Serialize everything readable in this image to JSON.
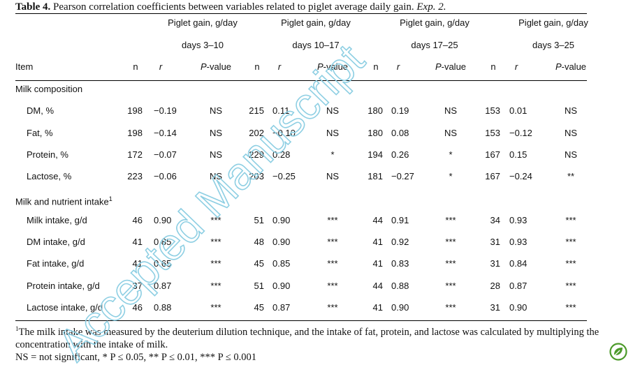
{
  "caption": {
    "label": "Table 4.",
    "text": " Pearson correlation coefficients between variables related to piglet average daily gain. ",
    "exp": "Exp. 2."
  },
  "header": {
    "groups": [
      {
        "title": "Piglet gain, g/day",
        "days": "days 3–10"
      },
      {
        "title": "Piglet gain, g/day",
        "days": "days 10–17"
      },
      {
        "title": "Piglet gain, g/day",
        "days": "days 17–25"
      },
      {
        "title": "Piglet gain, g/day",
        "days": "days 3–25"
      }
    ],
    "item": "Item",
    "n": "n",
    "r": "r",
    "p_italic": "P",
    "p_rest": "-value"
  },
  "sections": [
    {
      "title": "Milk composition",
      "sup": "",
      "rows": [
        {
          "label": "DM, %",
          "cells": [
            [
              "198",
              "−0.19",
              "NS"
            ],
            [
              "215",
              "0.11",
              "NS"
            ],
            [
              "180",
              "0.19",
              "NS"
            ],
            [
              "153",
              "0.01",
              "NS"
            ]
          ]
        },
        {
          "label": "Fat, %",
          "cells": [
            [
              "198",
              "−0.14",
              "NS"
            ],
            [
              "202",
              "−0.10",
              "NS"
            ],
            [
              "180",
              "0.08",
              "NS"
            ],
            [
              "153",
              "−0.12",
              "NS"
            ]
          ]
        },
        {
          "label": "Protein, %",
          "cells": [
            [
              "172",
              "−0.07",
              "NS"
            ],
            [
              "229",
              "0.28",
              "*"
            ],
            [
              "194",
              "0.26",
              "*"
            ],
            [
              "167",
              "0.15",
              "NS"
            ]
          ]
        },
        {
          "label": "Lactose, %",
          "cells": [
            [
              "223",
              "−0.06",
              "NS"
            ],
            [
              "203",
              "−0.25",
              "NS"
            ],
            [
              "181",
              "−0.27",
              "*"
            ],
            [
              "167",
              "−0.24",
              "**"
            ]
          ]
        }
      ]
    },
    {
      "title": "Milk and nutrient intake",
      "sup": "1",
      "rows": [
        {
          "label": "Milk intake, g/d",
          "cells": [
            [
              "46",
              "0.90",
              "***"
            ],
            [
              "51",
              "0.90",
              "***"
            ],
            [
              "44",
              "0.91",
              "***"
            ],
            [
              "34",
              "0.93",
              "***"
            ]
          ]
        },
        {
          "label": "DM intake, g/d",
          "cells": [
            [
              "41",
              "0.85",
              "***"
            ],
            [
              "48",
              "0.90",
              "***"
            ],
            [
              "41",
              "0.92",
              "***"
            ],
            [
              "31",
              "0.93",
              "***"
            ]
          ]
        },
        {
          "label": "Fat intake, g/d",
          "cells": [
            [
              "41",
              "0.65",
              "***"
            ],
            [
              "45",
              "0.85",
              "***"
            ],
            [
              "41",
              "0.83",
              "***"
            ],
            [
              "31",
              "0.84",
              "***"
            ]
          ]
        },
        {
          "label": "Protein intake, g/d",
          "cells": [
            [
              "37",
              "0.87",
              "***"
            ],
            [
              "51",
              "0.90",
              "***"
            ],
            [
              "44",
              "0.88",
              "***"
            ],
            [
              "28",
              "0.87",
              "***"
            ]
          ]
        },
        {
          "label": "Lactose intake, g/d",
          "cells": [
            [
              "46",
              "0.88",
              "***"
            ],
            [
              "45",
              "0.87",
              "***"
            ],
            [
              "41",
              "0.90",
              "***"
            ],
            [
              "31",
              "0.90",
              "***"
            ]
          ]
        }
      ]
    }
  ],
  "footnotes": {
    "note1_sup": "1",
    "note1": "The milk intake was measured by the deuterium dilution technique, and the intake of fat, protein, and lactose was calculated by multiplying the concentration with the intake of milk.",
    "ns_line": "NS = not significant, * P ≤ 0.05, ** P ≤ 0.01, *** P ≤ 0.001"
  },
  "watermark": {
    "text": "Accepted Manuscript",
    "color": "#8ecfe3"
  },
  "badge": {
    "icon": "leaf-logo-icon",
    "color": "#4c9a2a"
  }
}
